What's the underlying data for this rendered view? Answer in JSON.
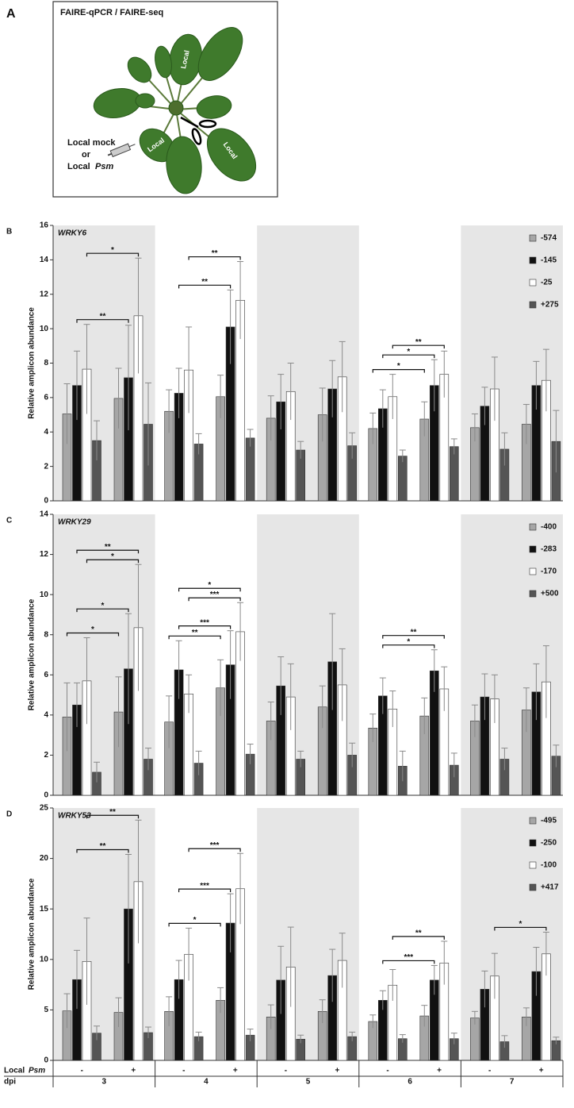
{
  "panel_a": {
    "label": "A",
    "title": "FAIRE-qPCR / FAIRE-seq",
    "leaf_labels": [
      "Local",
      "Local",
      "Local"
    ],
    "treatment": [
      "Local mock",
      "or",
      "Local",
      "Psm"
    ]
  },
  "chart_data": [
    {
      "type": "bar",
      "panel_label": "B",
      "title": "WRKY6",
      "ylabel": "Relative amplicon abundance",
      "ylim": [
        0,
        16
      ],
      "yticks": [
        0,
        2,
        4,
        6,
        8,
        10,
        12,
        14,
        16
      ],
      "band_color": "#e6e6e6",
      "series": [
        {
          "name": "-574",
          "color": "#a6a6a6",
          "values": [
            5.05,
            5.95,
            5.2,
            6.05,
            4.8,
            5.0,
            4.2,
            4.75,
            4.25,
            4.45
          ],
          "errors": [
            1.75,
            1.75,
            1.25,
            1.25,
            1.3,
            1.55,
            0.9,
            1.0,
            0.8,
            1.15
          ]
        },
        {
          "name": "-145",
          "color": "#111111",
          "values": [
            6.7,
            7.15,
            6.25,
            10.1,
            5.75,
            6.5,
            5.35,
            6.7,
            5.5,
            6.7
          ],
          "errors": [
            2.0,
            3.05,
            1.45,
            2.15,
            1.6,
            1.65,
            1.1,
            1.5,
            1.1,
            1.4
          ]
        },
        {
          "name": "-25",
          "color": "#ffffff",
          "values": [
            7.65,
            10.75,
            7.6,
            11.65,
            6.35,
            7.2,
            6.05,
            7.35,
            6.5,
            7.0
          ],
          "errors": [
            2.6,
            3.35,
            2.5,
            2.25,
            1.65,
            2.05,
            1.3,
            1.35,
            1.85,
            1.8
          ]
        },
        {
          "name": "+275",
          "color": "#555555",
          "values": [
            3.5,
            4.45,
            3.3,
            3.65,
            2.95,
            3.2,
            2.6,
            3.15,
            3.0,
            3.45
          ],
          "errors": [
            1.15,
            2.4,
            0.6,
            0.5,
            0.5,
            0.75,
            0.35,
            0.45,
            0.95,
            1.8
          ]
        }
      ],
      "annotations": [
        {
          "text": "**",
          "from": [
            1,
            0
          ],
          "to": [
            1,
            1
          ]
        },
        {
          "text": "*",
          "from": [
            2,
            0
          ],
          "to": [
            2,
            1
          ]
        },
        {
          "text": "**",
          "from": [
            1,
            2
          ],
          "to": [
            1,
            3
          ]
        },
        {
          "text": "**",
          "from": [
            2,
            2
          ],
          "to": [
            2,
            3
          ]
        },
        {
          "text": "*",
          "from": [
            0,
            6
          ],
          "to": [
            0,
            7
          ]
        },
        {
          "text": "*",
          "from": [
            1,
            6
          ],
          "to": [
            1,
            7
          ]
        },
        {
          "text": "**",
          "from": [
            2,
            6
          ],
          "to": [
            2,
            7
          ]
        }
      ]
    },
    {
      "type": "bar",
      "panel_label": "C",
      "title": "WRKY29",
      "ylabel": "Relative amplicon abundance",
      "ylim": [
        0,
        14
      ],
      "yticks": [
        0,
        2,
        4,
        6,
        8,
        10,
        12,
        14
      ],
      "band_color": "#e6e6e6",
      "series": [
        {
          "name": "-400",
          "color": "#a6a6a6",
          "values": [
            3.9,
            4.15,
            3.65,
            5.35,
            3.7,
            4.4,
            3.35,
            3.95,
            3.7,
            4.25
          ],
          "errors": [
            1.7,
            1.75,
            1.3,
            1.4,
            0.95,
            1.05,
            0.7,
            0.9,
            0.8,
            1.1
          ]
        },
        {
          "name": "-283",
          "color": "#111111",
          "values": [
            4.5,
            6.3,
            6.25,
            6.5,
            5.45,
            6.65,
            4.95,
            6.2,
            4.9,
            5.15
          ],
          "errors": [
            1.1,
            2.75,
            1.45,
            1.7,
            1.45,
            2.4,
            0.9,
            1.05,
            1.15,
            1.4
          ]
        },
        {
          "name": "-170",
          "color": "#ffffff",
          "values": [
            5.7,
            8.35,
            5.05,
            8.15,
            4.9,
            5.5,
            4.3,
            5.3,
            4.8,
            5.65
          ],
          "errors": [
            2.15,
            3.15,
            0.95,
            1.45,
            1.65,
            1.8,
            0.9,
            1.1,
            1.2,
            1.8
          ]
        },
        {
          "name": "+500",
          "color": "#555555",
          "values": [
            1.15,
            1.8,
            1.6,
            2.05,
            1.8,
            2.0,
            1.45,
            1.5,
            1.8,
            1.95
          ],
          "errors": [
            0.5,
            0.55,
            0.6,
            0.5,
            0.4,
            0.6,
            0.75,
            0.6,
            0.55,
            0.55
          ]
        }
      ],
      "annotations": [
        {
          "text": "*",
          "from": [
            0,
            0
          ],
          "to": [
            0,
            1
          ]
        },
        {
          "text": "*",
          "from": [
            1,
            0
          ],
          "to": [
            1,
            1
          ]
        },
        {
          "text": "*",
          "from": [
            2,
            0
          ],
          "to": [
            2,
            1
          ]
        },
        {
          "text": "**",
          "from": [
            1,
            0
          ],
          "to": [
            2,
            1
          ]
        },
        {
          "text": "**",
          "from": [
            0,
            2
          ],
          "to": [
            0,
            3
          ]
        },
        {
          "text": "***",
          "from": [
            1,
            2
          ],
          "to": [
            1,
            3
          ]
        },
        {
          "text": "***",
          "from": [
            2,
            2
          ],
          "to": [
            2,
            3
          ]
        },
        {
          "text": "*",
          "from": [
            1,
            2
          ],
          "to": [
            2,
            3
          ]
        },
        {
          "text": "*",
          "from": [
            1,
            6
          ],
          "to": [
            1,
            7
          ]
        },
        {
          "text": "**",
          "from": [
            1,
            6
          ],
          "to": [
            2,
            7
          ]
        }
      ]
    },
    {
      "type": "bar",
      "panel_label": "D",
      "title": "WRKY53",
      "ylabel": "Relative amplicon abundance",
      "ylim": [
        0,
        25
      ],
      "yticks": [
        0,
        5,
        10,
        15,
        20,
        25
      ],
      "band_color": "#e6e6e6",
      "series": [
        {
          "name": "-495",
          "color": "#a6a6a6",
          "values": [
            4.9,
            4.75,
            4.85,
            5.95,
            4.3,
            4.85,
            3.85,
            4.4,
            4.2,
            4.3
          ],
          "errors": [
            1.7,
            1.45,
            1.45,
            1.25,
            1.2,
            1.15,
            0.65,
            1.05,
            0.65,
            0.9
          ]
        },
        {
          "name": "-250",
          "color": "#111111",
          "values": [
            8.0,
            15.0,
            8.0,
            13.6,
            7.95,
            8.4,
            5.95,
            7.95,
            7.05,
            8.8
          ],
          "errors": [
            2.9,
            5.4,
            1.9,
            2.9,
            3.35,
            2.6,
            0.95,
            1.45,
            1.8,
            2.4
          ]
        },
        {
          "name": "-100",
          "color": "#ffffff",
          "values": [
            9.8,
            17.7,
            10.5,
            17.0,
            9.25,
            9.9,
            7.45,
            9.65,
            8.35,
            10.55
          ],
          "errors": [
            4.3,
            6.1,
            2.6,
            3.5,
            3.95,
            2.7,
            1.55,
            2.15,
            2.25,
            2.15
          ]
        },
        {
          "name": "+417",
          "color": "#555555",
          "values": [
            2.7,
            2.75,
            2.35,
            2.5,
            2.1,
            2.35,
            2.15,
            2.15,
            1.85,
            1.95
          ],
          "errors": [
            0.7,
            0.55,
            0.45,
            0.6,
            0.4,
            0.45,
            0.4,
            0.55,
            0.6,
            0.35
          ]
        }
      ],
      "annotations": [
        {
          "text": "**",
          "from": [
            1,
            0
          ],
          "to": [
            1,
            1
          ]
        },
        {
          "text": "**",
          "from": [
            2,
            0
          ],
          "to": [
            2,
            1
          ]
        },
        {
          "text": "*",
          "from": [
            0,
            2
          ],
          "to": [
            0,
            3
          ]
        },
        {
          "text": "***",
          "from": [
            1,
            2
          ],
          "to": [
            1,
            3
          ]
        },
        {
          "text": "***",
          "from": [
            2,
            2
          ],
          "to": [
            2,
            3
          ]
        },
        {
          "text": "***",
          "from": [
            1,
            6
          ],
          "to": [
            1,
            7
          ]
        },
        {
          "text": "**",
          "from": [
            2,
            6
          ],
          "to": [
            2,
            7
          ]
        },
        {
          "text": "*",
          "from": [
            2,
            8
          ],
          "to": [
            2,
            9
          ]
        }
      ],
      "categories": [
        "-",
        "+",
        "-",
        "+",
        "-",
        "+",
        "-",
        "+",
        "-",
        "+"
      ],
      "groups": [
        "3",
        "4",
        "5",
        "6",
        "7"
      ],
      "row_labels": [
        [
          "Local",
          "Psm"
        ],
        "dpi"
      ]
    }
  ]
}
